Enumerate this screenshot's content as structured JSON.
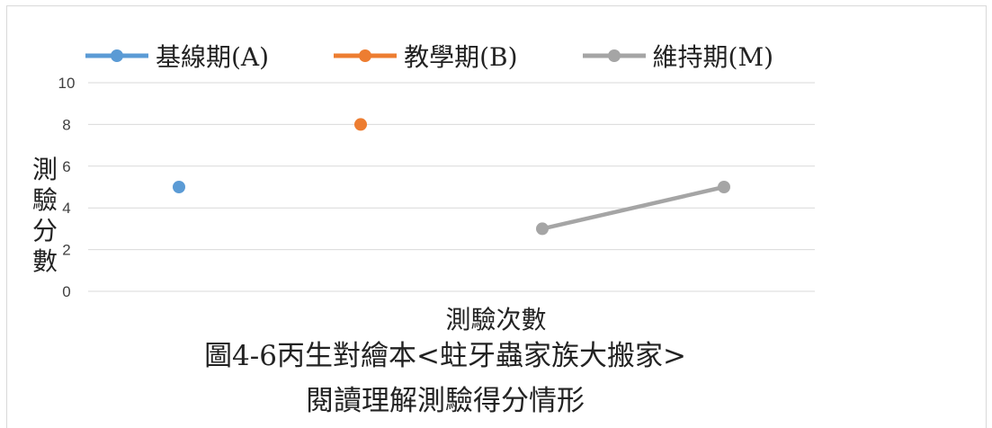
{
  "caption": {
    "line1": "圖4-6丙生對繪本<蛀牙蟲家族大搬家>",
    "line2": "閱讀理解測驗得分情形"
  },
  "legend": [
    {
      "label": "基線期(A)",
      "color": "#5b9bd5"
    },
    {
      "label": "教學期(B)",
      "color": "#ed7d31"
    },
    {
      "label": "維持期(M)",
      "color": "#a5a5a5"
    }
  ],
  "chart_data": {
    "type": "line",
    "title": "",
    "xlabel": "測驗次數",
    "ylabel": "測驗分數",
    "ylim": [
      0,
      10
    ],
    "yticks": [
      0,
      2,
      4,
      6,
      8,
      10
    ],
    "x": [
      1,
      2,
      3,
      4
    ],
    "series": [
      {
        "name": "基線期(A)",
        "color": "#5b9bd5",
        "points": [
          {
            "x": 1,
            "y": 5
          }
        ]
      },
      {
        "name": "教學期(B)",
        "color": "#ed7d31",
        "points": [
          {
            "x": 2,
            "y": 8
          }
        ]
      },
      {
        "name": "維持期(M)",
        "color": "#a5a5a5",
        "points": [
          {
            "x": 3,
            "y": 3
          },
          {
            "x": 4,
            "y": 5
          }
        ]
      }
    ],
    "grid": true,
    "legend_position": "top"
  }
}
